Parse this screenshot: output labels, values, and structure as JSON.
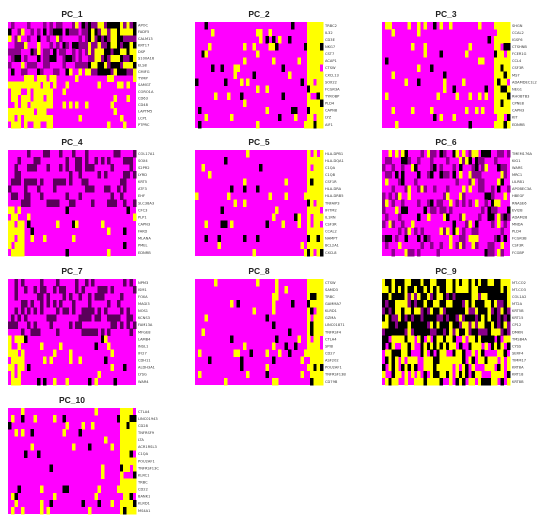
{
  "chart_data": [
    {
      "type": "heatmap",
      "title": "PC_1",
      "genes": [
        "APOC",
        "FADF5",
        "CALM13",
        "KRT17",
        "DSP",
        "S100A16",
        "ELS8",
        "CMIFG",
        "TYMP",
        "SAMGT",
        "CORO1A",
        "CD63",
        "CD48",
        "LAPTM5",
        "LCP1",
        "PTPRC"
      ],
      "colors": [
        "#ff00ff",
        "#000000",
        "#ffff00"
      ],
      "split": "top",
      "accent": "#2a0038"
    },
    {
      "type": "heatmap",
      "title": "PC_2",
      "genes": [
        "TRBC2",
        "IL32",
        "CD3E",
        "NKG7",
        "CST7",
        "ACAP1",
        "CTSW",
        "CXCL13",
        "SOX22",
        "FCGR3A",
        "TYROBP",
        "PLD4",
        "CAPN8",
        "LYZ",
        "AIF1"
      ],
      "colors": [
        "#ff00ff",
        "#000000",
        "#ffff00"
      ],
      "split": "right",
      "accent": "#ff00ff"
    },
    {
      "type": "heatmap",
      "title": "PC_3",
      "genes": [
        "SHGN",
        "CCAL2",
        "IGSF6",
        "CTSHNB",
        "FCER1G",
        "CCL4",
        "CSF3R",
        "MS7",
        "ADAMDEC1L2",
        "NEG1",
        "RHOBTB3",
        "CPNE8",
        "CAPN3",
        "KIT",
        "EDNRB"
      ],
      "colors": [
        "#ff00ff",
        "#000000",
        "#ffff00"
      ],
      "split": "right",
      "accent": "#ff00ff"
    },
    {
      "type": "heatmap",
      "title": "PC_4",
      "genes": [
        "COL17A1",
        "SOX4",
        "S2PR2",
        "LYRD",
        "KRT5",
        "ATF3",
        "EHF",
        "SLC38A3",
        "CFC3",
        "PLP1",
        "CAPN3",
        "FAKD",
        "MLANA",
        "PMEL",
        "EDNRB"
      ],
      "colors": [
        "#ff00ff",
        "#000000",
        "#ffff00"
      ],
      "split": "left",
      "accent": "#8b008b"
    },
    {
      "type": "heatmap",
      "title": "PC_5",
      "genes": [
        "HLA-DPB1",
        "HLA-DQA1",
        "C1QA",
        "C1QB",
        "CSF1R",
        "HLA-DRA",
        "HLA-DRB5",
        "TNFAIP3",
        "IFITM2",
        "IL1RN",
        "CSF3R",
        "CCAL2",
        "NAMPT",
        "BCL2A1",
        "CXCL8"
      ],
      "colors": [
        "#ff00ff",
        "#000000",
        "#ffff00"
      ],
      "split": "right",
      "accent": "#ff00ff"
    },
    {
      "type": "heatmap",
      "title": "PC_6",
      "genes": [
        "TMEM176A",
        "KIG1",
        "WARS",
        "MRC1",
        "LILRB1",
        "APOBEC3A",
        "HBEGF",
        "RNASE6",
        "EVI2B",
        "ADAM28",
        "MNDA",
        "PLD4",
        "FCGR3B",
        "CSF3R",
        "FCGBP"
      ],
      "colors": [
        "#ff00ff",
        "#000000",
        "#ffff00"
      ],
      "split": "random",
      "accent": "#8b008b"
    },
    {
      "type": "heatmap",
      "title": "PC_7",
      "genes": [
        "NPM3",
        "ISM1",
        "FOXA",
        "MAGI3",
        "NOS1",
        "KCNS3",
        "FAM13A",
        "MFGE8",
        "LAMB4",
        "INSL1",
        "IFI27",
        "CDH11",
        "ALDH3A1",
        "LYSG",
        "WAR4"
      ],
      "colors": [
        "#ff00ff",
        "#000000",
        "#ffff00"
      ],
      "split": "left",
      "accent": "#8b008b"
    },
    {
      "type": "heatmap",
      "title": "PC_8",
      "genes": [
        "CTSW",
        "SAMD3",
        "TRBC",
        "GAMMA7",
        "KLRD1",
        "GZMA",
        "LINC01871",
        "TNFRSF4",
        "CTLA4",
        "SPIB",
        "CD27",
        "ASF202",
        "POU2AF1",
        "TNFRSF13B",
        "CD79B"
      ],
      "colors": [
        "#ff00ff",
        "#000000",
        "#ffff00"
      ],
      "split": "right",
      "accent": "#ff00ff"
    },
    {
      "type": "heatmap",
      "title": "PC_9",
      "genes": [
        "MT-CO2",
        "MT-CO3",
        "COL1A2",
        "MT2A",
        "KRT5B",
        "KRT15",
        "CP12",
        "DMKN",
        "TMSB4A",
        "CYSS",
        "SERF4",
        "TIMM17",
        "KRT8A",
        "KRT18",
        "KRT8B"
      ],
      "colors": [
        "#ff00ff",
        "#000000",
        "#ffff00"
      ],
      "split": "dark",
      "accent": "#000000"
    },
    {
      "type": "heatmap",
      "title": "PC_10",
      "genes": [
        "CTLA4",
        "LINC01943",
        "CD28",
        "TNFRSF9",
        "LTA",
        "ACR1RSL3",
        "C1QA",
        "POU2AF1",
        "TNFRSF13C",
        "KLRC1",
        "TRBC",
        "CD22",
        "BANK1",
        "KLRD1",
        "MS4A1"
      ],
      "colors": [
        "#ff00ff",
        "#000000",
        "#ffff00"
      ],
      "split": "right",
      "accent": "#ff00ff"
    }
  ]
}
